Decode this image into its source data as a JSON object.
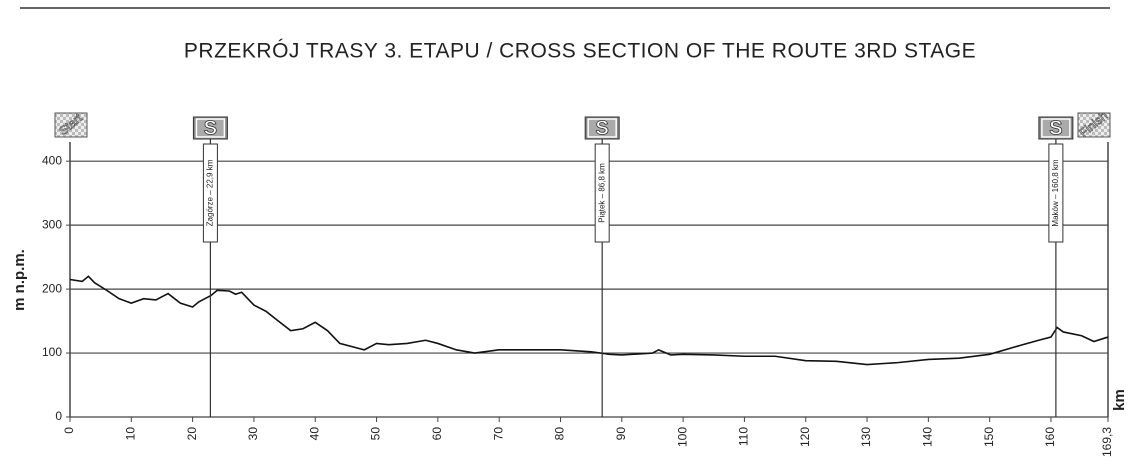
{
  "chart_data": {
    "type": "line",
    "title": "PRZEKRÓJ TRASY 3. ETAPU / CROSS SECTION OF THE ROUTE 3RD STAGE",
    "y_label": "m n.p.m.",
    "x_label": "km",
    "x": [
      0,
      2,
      3,
      4,
      6,
      8,
      10,
      12,
      14,
      16,
      18,
      20,
      21,
      22,
      23,
      24,
      26,
      27,
      28,
      30,
      32,
      34,
      36,
      38,
      40,
      42,
      44,
      46,
      48,
      50,
      52,
      55,
      58,
      60,
      63,
      66,
      70,
      75,
      80,
      85,
      88,
      90,
      95,
      96,
      98,
      100,
      105,
      110,
      115,
      120,
      125,
      130,
      135,
      140,
      145,
      150,
      155,
      158,
      160,
      161,
      162,
      165,
      167,
      169.3
    ],
    "series": [
      {
        "name": "elevation",
        "color": "#111111",
        "values": [
          215,
          212,
          220,
          210,
          198,
          185,
          178,
          185,
          183,
          193,
          178,
          172,
          180,
          185,
          190,
          198,
          197,
          192,
          195,
          175,
          165,
          150,
          135,
          138,
          148,
          135,
          115,
          110,
          105,
          115,
          113,
          115,
          120,
          115,
          105,
          100,
          105,
          105,
          105,
          102,
          98,
          97,
          100,
          105,
          97,
          98,
          97,
          95,
          95,
          88,
          87,
          82,
          85,
          90,
          92,
          98,
          112,
          120,
          125,
          140,
          133,
          127,
          118,
          125
        ]
      }
    ],
    "xlim": [
      0,
      169.3
    ],
    "ylim": [
      0,
      430
    ],
    "xticks": [
      0,
      10,
      20,
      30,
      40,
      50,
      60,
      70,
      80,
      90,
      100,
      110,
      120,
      130,
      140,
      150,
      160,
      {
        "value": 169.3,
        "label": "169,3"
      }
    ],
    "yticks": [
      0,
      100,
      200,
      300,
      400
    ],
    "grid": true,
    "markers": [
      {
        "x": 0,
        "sign": "Start"
      },
      {
        "x": 22.9,
        "sign": "S",
        "label": "Zagórze – 22,9 km"
      },
      {
        "x": 86.8,
        "sign": "S",
        "label": "Piątek – 86,8 km"
      },
      {
        "x": 160.8,
        "sign": "S",
        "label": "Maków – 160,8 km"
      },
      {
        "x": 169.3,
        "sign": "Finish"
      }
    ]
  }
}
